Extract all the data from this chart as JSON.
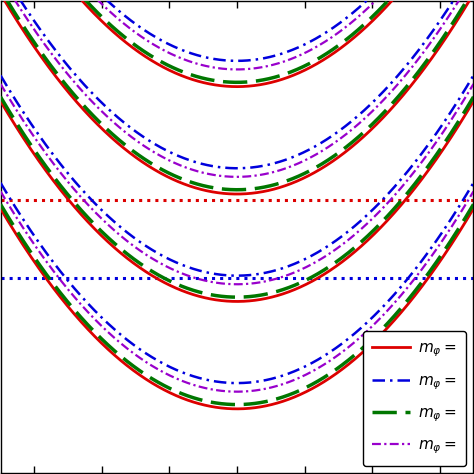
{
  "background_color": "#ffffff",
  "xlim": [
    -3.5,
    3.5
  ],
  "ylim": [
    -1.5,
    9.5
  ],
  "xticks": [
    -3,
    -2,
    -1,
    0,
    1,
    2,
    3
  ],
  "curve_sets": [
    {
      "color": "#dd0000",
      "lw": 2.0,
      "ls": "solid",
      "offsets": [
        0.0,
        2.5,
        5.0,
        7.5,
        10.0
      ]
    },
    {
      "color": "#0000dd",
      "lw": 1.8,
      "ls": [
        0,
        [
          5,
          2,
          1,
          2
        ]
      ],
      "offsets": [
        0.6,
        3.1,
        5.6,
        8.1,
        10.6
      ]
    },
    {
      "color": "#007700",
      "lw": 2.5,
      "ls": [
        0,
        [
          7,
          2.5
        ]
      ],
      "offsets": [
        0.1,
        2.6,
        5.1,
        7.6,
        10.1
      ]
    },
    {
      "color": "#9900cc",
      "lw": 1.6,
      "ls": [
        0,
        [
          4,
          1.5,
          1,
          1.5
        ]
      ],
      "offsets": [
        0.4,
        2.9,
        5.4,
        7.9,
        10.4
      ]
    }
  ],
  "k": 0.38,
  "hlines": [
    {
      "y": 3.05,
      "color": "#0000dd",
      "lw": 2.2
    },
    {
      "y": 4.85,
      "color": "#dd0000",
      "lw": 2.2
    }
  ],
  "legend_labels": [
    "$m_\\varphi =$",
    "$m_\\varphi =$",
    "$m_\\varphi =$",
    "$m_\\varphi =$"
  ],
  "legend_colors": [
    "#dd0000",
    "#0000dd",
    "#007700",
    "#9900cc"
  ],
  "legend_ls": [
    "solid",
    [
      0,
      [
        5,
        2,
        1,
        2
      ]
    ],
    [
      0,
      [
        7,
        2.5
      ]
    ],
    [
      0,
      [
        4,
        1.5,
        1,
        1.5
      ]
    ]
  ],
  "legend_lw": [
    2.0,
    1.8,
    2.5,
    1.6
  ]
}
